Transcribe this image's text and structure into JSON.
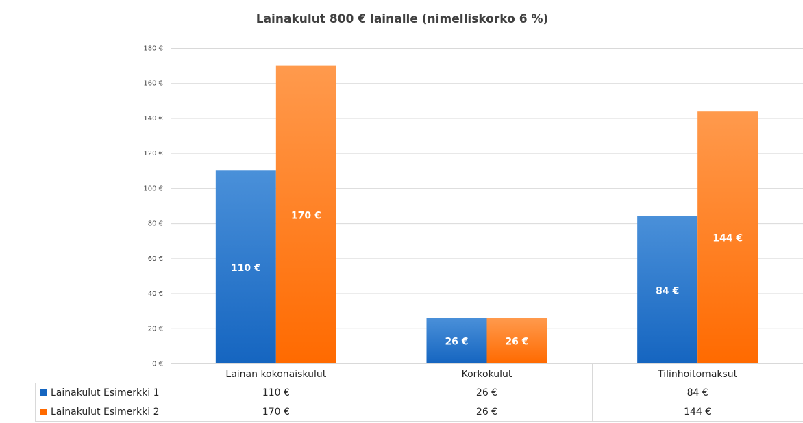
{
  "chart_data": {
    "type": "bar",
    "title": "Lainakulut 800 € lainalle (nimelliskorko 6 %)",
    "categories": [
      "Lainan kokonaiskulut",
      "Korkokulut",
      "Tilinhoitomaksut"
    ],
    "series": [
      {
        "name": "Lainakulut Esimerkki 1",
        "values": [
          110,
          26,
          84
        ],
        "labels": [
          "110 €",
          "26 €",
          "84 €"
        ],
        "color": "#1565c0",
        "color_light": "#4a90d9"
      },
      {
        "name": "Lainakulut Esimerkki 2",
        "values": [
          170,
          26,
          144
        ],
        "labels": [
          "170 €",
          "26 €",
          "144 €"
        ],
        "color": "#ff6a00",
        "color_light": "#ff9a4d"
      }
    ],
    "ylim": [
      0,
      180
    ],
    "yticks": [
      0,
      20,
      40,
      60,
      80,
      100,
      120,
      140,
      160,
      180
    ],
    "ytick_labels": [
      "0 €",
      "20 €",
      "40 €",
      "60 €",
      "80 €",
      "100 €",
      "120 €",
      "140 €",
      "160 €",
      "180 €"
    ],
    "grid": true,
    "legend": "data-table"
  }
}
